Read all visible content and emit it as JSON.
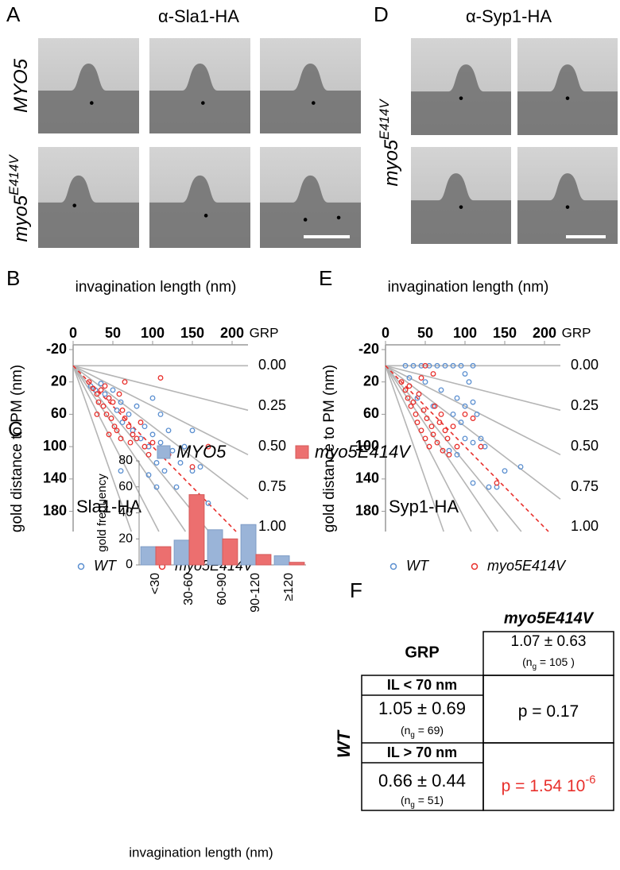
{
  "panels": {
    "A": {
      "letter": "A",
      "title": "α-Sla1-HA",
      "row_labels": [
        {
          "text": "MYO5"
        },
        {
          "text": "myo5",
          "sup": "E414V"
        }
      ]
    },
    "D": {
      "letter": "D",
      "title": "α-Syp1-HA",
      "row_label": {
        "text": "myo5",
        "sup": "E414V"
      }
    }
  },
  "chart_data": [
    {
      "type": "scatter",
      "letter": "B",
      "xlabel": "invagination length (nm)",
      "ylabel": "gold distance to PM (nm)",
      "annotation": "Sla1-HA",
      "xlim": [
        0,
        220
      ],
      "ylim": [
        -20,
        205
      ],
      "xticks": [
        0,
        50,
        100,
        150,
        200
      ],
      "yticks": [
        -20,
        20,
        60,
        100,
        140,
        180
      ],
      "grp_label": "GRP",
      "grp_color": "#b5b5b5",
      "grp_lines": [
        {
          "value": 0,
          "label": "0.00"
        },
        {
          "value": 0.25,
          "label": "0.25"
        },
        {
          "value": 0.5,
          "label": "0.50"
        },
        {
          "value": 0.75,
          "label": "0.75"
        },
        {
          "value": 1.2,
          "label": null
        },
        {
          "value": 1.45,
          "label": null
        },
        {
          "value": 1.9,
          "label": null
        },
        {
          "value": 2.8,
          "label": null
        }
      ],
      "grp_fit": {
        "value": 1,
        "label": "1.00",
        "color": "#e8302c"
      },
      "series": [
        {
          "name": "WT",
          "color": "#5b8fd0",
          "x": [
            22,
            28,
            35,
            40,
            45,
            50,
            55,
            60,
            62,
            70,
            75,
            80,
            85,
            90,
            95,
            100,
            105,
            110,
            115,
            120,
            125,
            130,
            135,
            140,
            150,
            160,
            170,
            60,
            100,
            110,
            120,
            150,
            95,
            105
          ],
          "values": [
            25,
            30,
            22,
            35,
            40,
            30,
            55,
            45,
            70,
            60,
            80,
            50,
            90,
            75,
            100,
            85,
            120,
            95,
            130,
            110,
            105,
            150,
            120,
            100,
            130,
            125,
            170,
            130,
            40,
            60,
            80,
            80,
            135,
            150
          ]
        },
        {
          "name": "myo5E414V",
          "color": "#e8302c",
          "x": [
            20,
            25,
            30,
            32,
            35,
            38,
            40,
            42,
            45,
            48,
            50,
            52,
            55,
            58,
            60,
            62,
            65,
            70,
            72,
            75,
            80,
            85,
            90,
            95,
            100,
            110,
            120,
            150,
            170,
            30,
            45,
            65
          ],
          "values": [
            20,
            28,
            35,
            45,
            30,
            50,
            25,
            60,
            40,
            65,
            45,
            75,
            80,
            35,
            90,
            55,
            65,
            75,
            95,
            85,
            90,
            70,
            100,
            110,
            95,
            15,
            110,
            125,
            100,
            60,
            85,
            20
          ]
        }
      ]
    },
    {
      "type": "scatter",
      "letter": "E",
      "xlabel": "invagination length (nm)",
      "ylabel": "gold distance to PM (nm)",
      "annotation": "Syp1-HA",
      "xlim": [
        0,
        220
      ],
      "ylim": [
        -20,
        205
      ],
      "xticks": [
        0,
        50,
        100,
        150,
        200
      ],
      "yticks": [
        -20,
        20,
        60,
        100,
        140,
        180
      ],
      "grp_label": "GRP",
      "grp_color": "#b5b5b5",
      "grp_lines": [
        {
          "value": 0,
          "label": "0.00"
        },
        {
          "value": 0.25,
          "label": "0.25"
        },
        {
          "value": 0.5,
          "label": "0.50"
        },
        {
          "value": 0.75,
          "label": "0.75"
        },
        {
          "value": 1.2,
          "label": null
        },
        {
          "value": 1.45,
          "label": null
        },
        {
          "value": 1.9,
          "label": null
        },
        {
          "value": 2.8,
          "label": null
        }
      ],
      "grp_fit": {
        "value": 1,
        "label": "1.00",
        "color": "#e8302c"
      },
      "series": [
        {
          "name": "WT",
          "color": "#5b8fd0",
          "x": [
            25,
            35,
            45,
            55,
            65,
            75,
            85,
            95,
            100,
            105,
            110,
            30,
            50,
            70,
            90,
            100,
            110,
            115,
            95,
            85,
            60,
            40,
            100,
            110,
            120,
            125,
            130,
            140,
            150,
            170,
            90,
            80,
            110
          ],
          "values": [
            0,
            0,
            0,
            0,
            0,
            0,
            0,
            0,
            10,
            20,
            0,
            15,
            20,
            30,
            40,
            50,
            45,
            60,
            70,
            60,
            50,
            40,
            90,
            95,
            90,
            100,
            150,
            150,
            130,
            125,
            110,
            105,
            145
          ]
        },
        {
          "name": "myo5E414V",
          "color": "#e8302c",
          "x": [
            20,
            25,
            28,
            30,
            32,
            35,
            38,
            40,
            42,
            45,
            48,
            50,
            52,
            55,
            58,
            60,
            62,
            65,
            68,
            70,
            72,
            75,
            78,
            80,
            85,
            90,
            60,
            50,
            45,
            100,
            110,
            120,
            140
          ],
          "values": [
            20,
            30,
            40,
            25,
            50,
            45,
            60,
            70,
            35,
            80,
            55,
            90,
            65,
            100,
            75,
            85,
            50,
            95,
            70,
            60,
            105,
            80,
            90,
            110,
            75,
            100,
            10,
            0,
            15,
            60,
            65,
            100,
            145
          ]
        }
      ]
    },
    {
      "type": "bar",
      "letter": "C",
      "xlabel": "invagination length (nm)",
      "ylabel": "gold frequency",
      "categories": [
        "<30",
        "30-60",
        "60-90",
        "90-120",
        "≥120"
      ],
      "ylim": [
        0,
        80
      ],
      "yticks": [
        0,
        20,
        40,
        60,
        80
      ],
      "series": [
        {
          "name": "MYO5",
          "color": "#9ab4d8",
          "values": [
            14,
            19,
            27,
            31,
            7
          ]
        },
        {
          "name": "myo5E414V",
          "color": "#ec6f6f",
          "values": [
            14,
            54,
            20,
            8,
            2
          ]
        }
      ]
    }
  ],
  "table": {
    "letter": "F",
    "column_header": "myo5E414V",
    "row_header": "WT",
    "corner": "GRP",
    "mutant": {
      "grp": "1.07 ± 0.63",
      "n": {
        "pre": "(n",
        "sub": "g",
        "post": " = 105 )"
      }
    },
    "rows": [
      {
        "label": "IL < 70 nm",
        "grp": "1.05 ± 0.69",
        "n": {
          "pre": "(n",
          "sub": "g",
          "post": " = 69)"
        },
        "p": {
          "pre": "p = 0.17",
          "color": "#000000"
        }
      },
      {
        "label": "IL > 70 nm",
        "grp": "0.66 ± 0.44",
        "n": {
          "pre": "(n",
          "sub": "g",
          "post": " = 51)"
        },
        "p": {
          "pre": "p = 1.54 10",
          "sup": "-6",
          "color": "#e8302c"
        }
      }
    ]
  }
}
